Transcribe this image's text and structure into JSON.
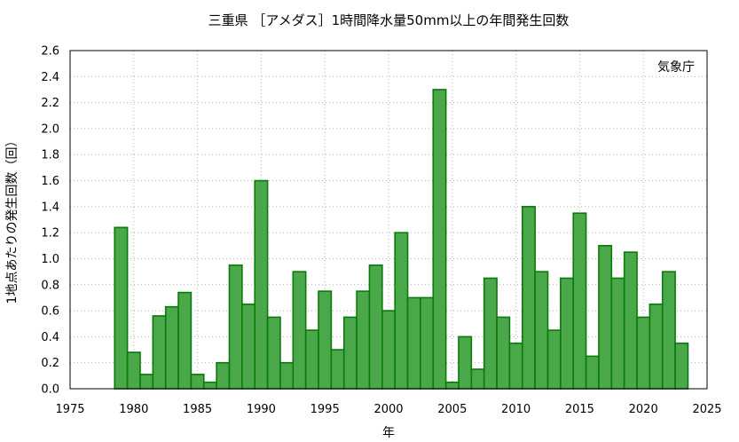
{
  "chart_data": {
    "type": "bar",
    "title": "三重県 ［アメダス］1時間降水量50mm以上の年間発生回数",
    "xlabel": "年",
    "ylabel": "1地点あたりの発生回数（回）",
    "annotation": "気象庁",
    "xlim": [
      1975,
      2025
    ],
    "ylim": [
      0,
      2.6
    ],
    "x_ticks": [
      "1975",
      "1980",
      "1985",
      "1990",
      "1995",
      "2000",
      "2005",
      "2010",
      "2015",
      "2020",
      "2025"
    ],
    "y_ticks": [
      "0.0",
      "0.2",
      "0.4",
      "0.6",
      "0.8",
      "1.0",
      "1.2",
      "1.4",
      "1.6",
      "1.8",
      "2.0",
      "2.2",
      "2.4",
      "2.6"
    ],
    "grid": true,
    "bar_color": "#4aa84a",
    "bar_edge_color": "#0a7a0a",
    "x": [
      1979,
      1980,
      1981,
      1982,
      1983,
      1984,
      1985,
      1986,
      1987,
      1988,
      1989,
      1990,
      1991,
      1992,
      1993,
      1994,
      1995,
      1996,
      1997,
      1998,
      1999,
      2000,
      2001,
      2002,
      2003,
      2004,
      2005,
      2006,
      2007,
      2008,
      2009,
      2010,
      2011,
      2012,
      2013,
      2014,
      2015,
      2016,
      2017,
      2018,
      2019,
      2020,
      2021,
      2022,
      2023
    ],
    "values": [
      1.24,
      0.28,
      0.11,
      0.56,
      0.63,
      0.74,
      0.11,
      0.05,
      0.2,
      0.95,
      0.65,
      1.6,
      0.55,
      0.2,
      0.9,
      0.45,
      0.75,
      0.3,
      0.55,
      0.75,
      0.95,
      0.6,
      1.2,
      0.7,
      0.7,
      2.3,
      0.05,
      0.4,
      0.15,
      0.85,
      0.55,
      0.35,
      1.4,
      0.9,
      0.45,
      0.85,
      1.35,
      0.25,
      1.1,
      0.85,
      1.05,
      0.55,
      0.65,
      0.9,
      0.35
    ]
  }
}
